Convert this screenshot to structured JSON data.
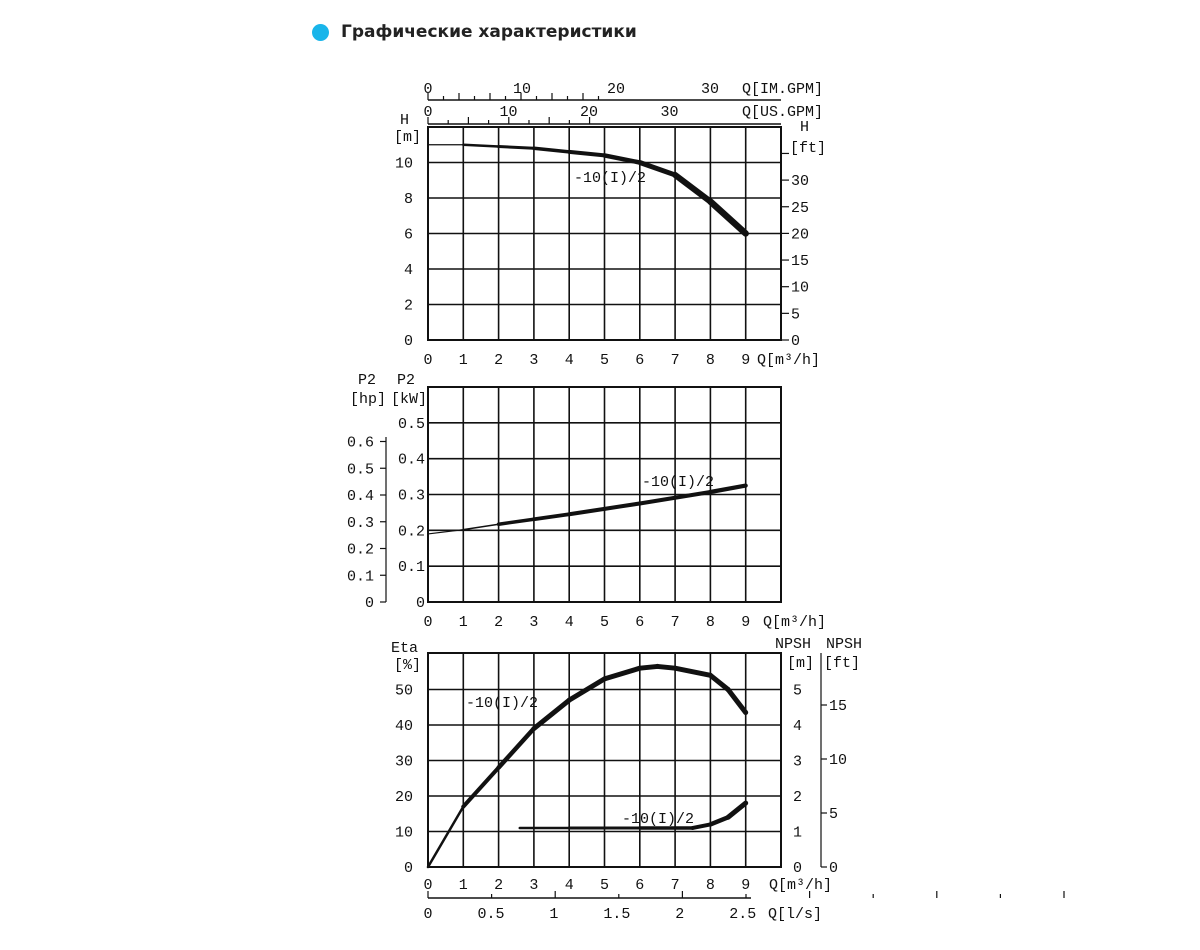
{
  "header": {
    "title": "Графические характеристики",
    "bullet_color": "#19b5ea"
  },
  "chart_data": [
    {
      "id": "head",
      "type": "line",
      "title": "",
      "x_label": "Q[m³/h]",
      "x_ticks": [
        "0",
        "1",
        "2",
        "3",
        "4",
        "5",
        "6",
        "7",
        "8",
        "9"
      ],
      "xlim": [
        0,
        10
      ],
      "top_axis_1": {
        "label": "Q[IM.GPM]",
        "ticks": [
          "0",
          "10",
          "20",
          "30"
        ]
      },
      "top_axis_2": {
        "label": "Q[US.GPM]",
        "ticks": [
          "0",
          "10",
          "20",
          "30"
        ]
      },
      "y_label_left": [
        "H",
        "[m]"
      ],
      "y_ticks_left": [
        "0",
        "2",
        "4",
        "6",
        "8",
        "10"
      ],
      "ylim": [
        0,
        12
      ],
      "y_label_right": [
        "H",
        "[ft]"
      ],
      "y_ticks_right": [
        "0",
        "5",
        "10",
        "15",
        "20",
        "25",
        "30"
      ],
      "grid": true,
      "series": [
        {
          "name": "-10(I)/2",
          "x": [
            0,
            1,
            2,
            3,
            4,
            5,
            6,
            7,
            8,
            9
          ],
          "y": [
            11.0,
            11.0,
            10.9,
            10.8,
            10.6,
            10.4,
            10.0,
            9.3,
            7.8,
            6.0
          ]
        }
      ]
    },
    {
      "id": "power",
      "type": "line",
      "title": "",
      "x_label": "Q[m³/h]",
      "x_ticks": [
        "0",
        "1",
        "2",
        "3",
        "4",
        "5",
        "6",
        "7",
        "8",
        "9"
      ],
      "xlim": [
        0,
        10
      ],
      "y_label_inner": [
        "P2",
        "[kW]"
      ],
      "y_ticks_inner": [
        "0",
        "0.1",
        "0.2",
        "0.3",
        "0.4",
        "0.5"
      ],
      "ylim": [
        0,
        0.6
      ],
      "y_label_outer": [
        "P2",
        "[hp]"
      ],
      "y_ticks_outer": [
        "0",
        "0.1",
        "0.2",
        "0.3",
        "0.4",
        "0.5",
        "0.6"
      ],
      "grid": true,
      "series": [
        {
          "name": "-10(I)/2",
          "x": [
            0,
            1,
            2,
            3,
            4,
            5,
            6,
            7,
            8,
            9
          ],
          "y": [
            0.19,
            0.202,
            0.217,
            0.231,
            0.245,
            0.26,
            0.275,
            0.291,
            0.307,
            0.325
          ]
        }
      ]
    },
    {
      "id": "efficiency",
      "type": "line",
      "title": "",
      "x_label": "Q[m³/h]",
      "x_ticks": [
        "0",
        "1",
        "2",
        "3",
        "4",
        "5",
        "6",
        "7",
        "8",
        "9"
      ],
      "xlim": [
        0,
        10
      ],
      "x2_label": "Q[l/s]",
      "x2_ticks": [
        "0",
        "0.5",
        "1",
        "1.5",
        "2",
        "2.5"
      ],
      "y_label_left": [
        "Eta",
        "[%]"
      ],
      "y_ticks_left": [
        "0",
        "10",
        "20",
        "30",
        "40",
        "50"
      ],
      "ylim": [
        0,
        60
      ],
      "y_label_right": [
        "NPSH",
        "[m]"
      ],
      "y_ticks_right": [
        "0",
        "1",
        "2",
        "3",
        "4",
        "5"
      ],
      "y_label_right2": [
        "NPSH",
        "[ft]"
      ],
      "y_ticks_right2": [
        "0",
        "5",
        "10",
        "15"
      ],
      "grid": true,
      "series": [
        {
          "name": "-10(I)/2",
          "axis": "eta",
          "x": [
            0,
            1,
            2,
            3,
            4,
            5,
            6,
            6.5,
            7,
            8,
            8.5,
            9
          ],
          "y": [
            0,
            17,
            28,
            39,
            47,
            53,
            56,
            56.5,
            56,
            54,
            50,
            43.5
          ]
        },
        {
          "name": "-10(I)/2",
          "axis": "npsh",
          "x": [
            2.6,
            4,
            6,
            7.5,
            8,
            8.5,
            9
          ],
          "y": [
            1.1,
            1.1,
            1.1,
            1.1,
            1.2,
            1.4,
            1.8
          ]
        }
      ]
    }
  ]
}
